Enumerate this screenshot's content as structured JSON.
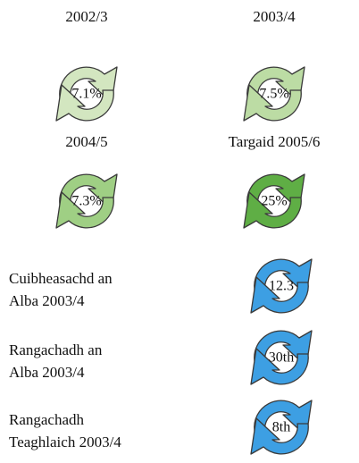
{
  "grid": [
    {
      "label": "2002/3",
      "value": "7.1%"
    },
    {
      "label": "2003/4",
      "value": "7.5%"
    },
    {
      "label": "2004/5",
      "value": "7.3%"
    },
    {
      "label": "Targaid 2005/6",
      "value": "25%"
    }
  ],
  "rows": [
    {
      "label_lines": [
        "Cuibheasachd an",
        "Alba 2003/4"
      ],
      "value": "12.3"
    },
    {
      "label_lines": [
        "Rangachadh an",
        "Alba 2003/4"
      ],
      "value": "30th"
    },
    {
      "label_lines": [
        "Rangachadh",
        "Teaghlaich 2003/4"
      ],
      "value": "8th"
    }
  ]
}
